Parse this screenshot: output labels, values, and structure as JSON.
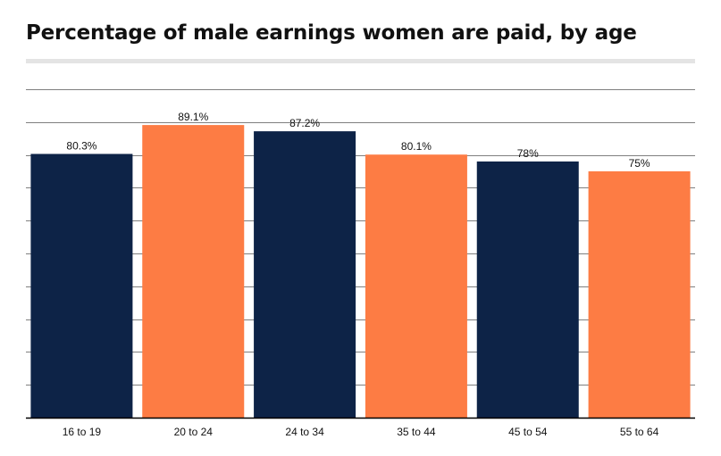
{
  "chart_data": {
    "type": "bar",
    "title": "Percentage of male earnings women are paid, by age",
    "categories": [
      "16 to 19",
      "20 to 24",
      "24 to 34",
      "35 to 44",
      "45 to 54",
      "55 to 64"
    ],
    "values": [
      80.3,
      89.1,
      87.2,
      80.1,
      78,
      75
    ],
    "data_labels": [
      "80.3%",
      "89.1%",
      "87.2%",
      "80.1%",
      "78%",
      "75%"
    ],
    "bar_colors": [
      "#0d2347",
      "#fd7c44",
      "#0d2347",
      "#fd7c44",
      "#0d2347",
      "#fd7c44"
    ],
    "ylim": [
      0,
      100
    ],
    "y_gridline_step": 10,
    "grid": true,
    "y_tick_labels_shown": false,
    "legend": "none",
    "colors": {
      "navy": "#0d2347",
      "orange": "#fd7c44",
      "grid": "#555555",
      "axis": "#000000"
    }
  }
}
